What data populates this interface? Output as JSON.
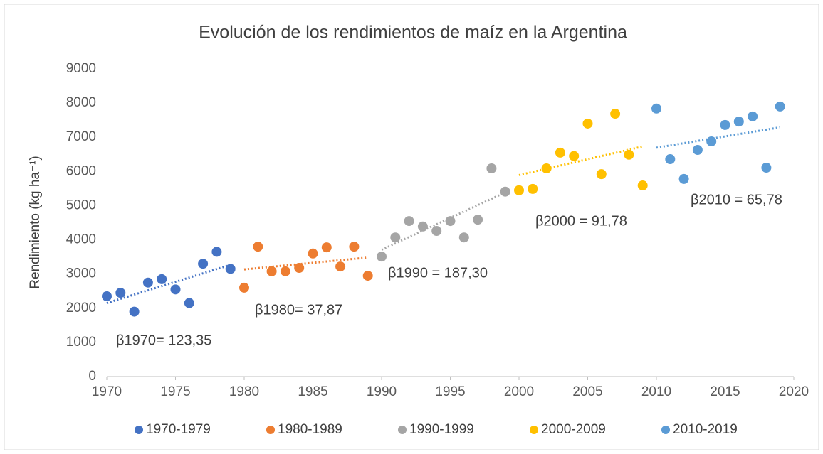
{
  "chart_data": {
    "type": "scatter",
    "title": "Evolución de los rendimientos de maíz en la Argentina",
    "y_label": "Rendimiento (kg ha⁻¹)",
    "xlim": [
      1970,
      2020
    ],
    "xticks": [
      1970,
      1975,
      1980,
      1985,
      1990,
      1995,
      2000,
      2005,
      2010,
      2015,
      2020
    ],
    "ylim": [
      0,
      9000
    ],
    "yticks": [
      0,
      1000,
      2000,
      3000,
      4000,
      5000,
      6000,
      7000,
      8000,
      9000
    ],
    "grid": false,
    "legend": "bottom",
    "trendline": "linear",
    "series": [
      {
        "name": "1970-1979",
        "color": "#4472c4",
        "x": [
          1970,
          1971,
          1972,
          1973,
          1974,
          1975,
          1976,
          1977,
          1978,
          1979
        ],
        "values": [
          2350,
          2450,
          1900,
          2750,
          2850,
          2550,
          2150,
          3300,
          3650,
          3150
        ]
      },
      {
        "name": "1980-1989",
        "color": "#ed7d31",
        "x": [
          1980,
          1981,
          1982,
          1983,
          1984,
          1985,
          1986,
          1987,
          1988,
          1989
        ],
        "values": [
          2600,
          3800,
          3080,
          3080,
          3180,
          3600,
          3780,
          3220,
          3800,
          2950
        ]
      },
      {
        "name": "1990-1999",
        "color": "#a5a5a5",
        "x": [
          1990,
          1991,
          1992,
          1993,
          1994,
          1995,
          1996,
          1997,
          1998,
          1999
        ],
        "values": [
          3510,
          4070,
          4550,
          4390,
          4260,
          4550,
          4070,
          4590,
          6090,
          5410
        ]
      },
      {
        "name": "2000-2009",
        "color": "#ffc000",
        "x": [
          2000,
          2001,
          2002,
          2003,
          2004,
          2005,
          2006,
          2007,
          2008,
          2009
        ],
        "values": [
          5450,
          5490,
          6090,
          6550,
          6450,
          7400,
          5920,
          7690,
          6490,
          5590
        ]
      },
      {
        "name": "2010-2019",
        "color": "#5b9bd5",
        "x": [
          2010,
          2011,
          2012,
          2013,
          2014,
          2015,
          2016,
          2017,
          2018,
          2019
        ],
        "values": [
          7840,
          6360,
          5780,
          6630,
          6880,
          7360,
          7460,
          7610,
          6110,
          7900
        ]
      }
    ],
    "annotations": [
      "β1970= 123,35",
      "β1980= 37,87",
      "β1990 = 187,30",
      "β2000 = 91,78",
      "β2010 = 65,78"
    ]
  }
}
